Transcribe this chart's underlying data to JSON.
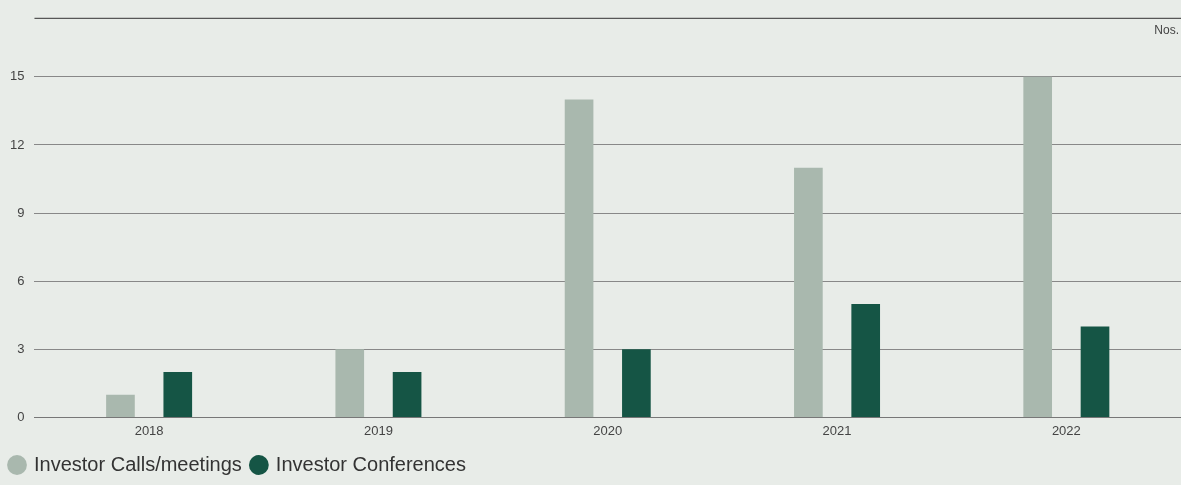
{
  "chart_data": {
    "type": "bar",
    "ylabel": "Nos.",
    "categories": [
      "2018",
      "2019",
      "2020",
      "2021",
      "2022"
    ],
    "series": [
      {
        "name": "Investor Calls/meetings",
        "color": "#a9b8ae",
        "values": [
          1,
          3,
          14,
          11,
          15
        ]
      },
      {
        "name": "Investor Conferences",
        "color": "#155545",
        "values": [
          2,
          2,
          3,
          5,
          4
        ]
      }
    ],
    "ylim": [
      0,
      17.6
    ],
    "yticks": [
      0,
      3,
      6,
      9,
      12,
      15
    ],
    "grid": "y",
    "legend": "bottom left"
  }
}
